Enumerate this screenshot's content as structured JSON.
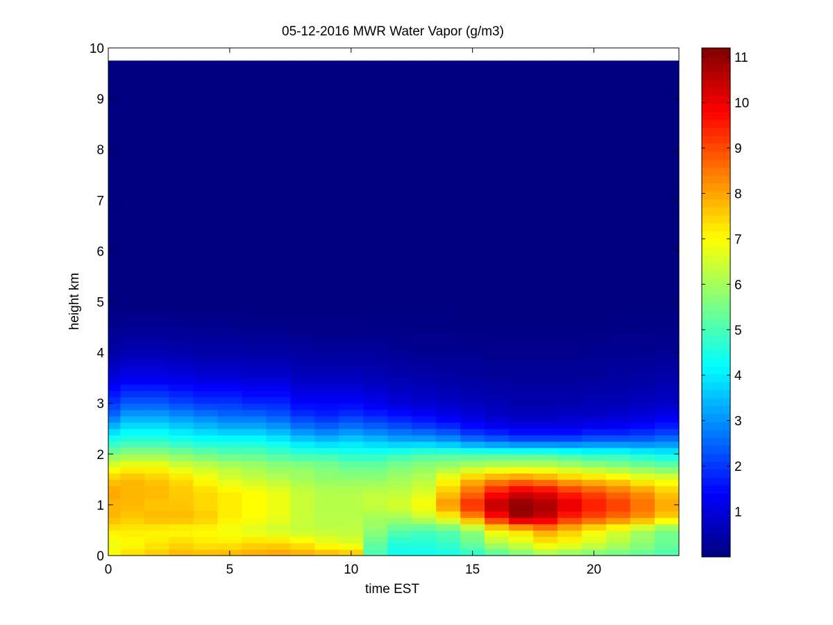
{
  "chart_data": {
    "type": "heatmap",
    "title": "05-12-2016 MWR Water Vapor (g/m3)",
    "xlabel": "time EST",
    "ylabel": "height km",
    "xlim": [
      0,
      23.5
    ],
    "ylim": [
      0,
      10
    ],
    "x_ticks": [
      "0",
      "5",
      "10",
      "15",
      "20"
    ],
    "y_ticks": [
      "0",
      "1",
      "2",
      "3",
      "4",
      "5",
      "6",
      "7",
      "8",
      "9",
      "10"
    ],
    "data_extent": {
      "x": [
        0,
        23.5
      ],
      "y": [
        0,
        9.75
      ]
    },
    "colorbar": {
      "colormap": "jet",
      "range": [
        0,
        11.2
      ],
      "ticks": [
        "1",
        "2",
        "3",
        "4",
        "5",
        "6",
        "7",
        "8",
        "9",
        "10",
        "11"
      ]
    },
    "grid": false,
    "x": [
      0.5,
      1.5,
      2.5,
      3.5,
      4.5,
      5.5,
      6.5,
      7.5,
      8.5,
      9.5,
      10.5,
      11.5,
      12.5,
      13.5,
      14.5,
      15.5,
      16.5,
      17.5,
      18.5,
      19.5,
      20.5,
      21.5,
      22.5,
      23.5
    ],
    "heights_km": [
      0.0,
      0.25,
      0.5,
      0.75,
      1.0,
      1.25,
      1.5,
      1.75,
      2.0,
      2.25,
      2.5,
      2.75,
      3.0,
      3.5,
      4.0,
      4.5,
      5.0
    ],
    "z_surface_to_top": [
      [
        7.0,
        7.4,
        7.6,
        7.8,
        7.8,
        7.9,
        8.0,
        8.1,
        8.0,
        7.9,
        7.8,
        5.0,
        4.3,
        4.3,
        4.4,
        4.6,
        5.0,
        5.4,
        5.8,
        5.6,
        5.4,
        5.3,
        5.2,
        5.0
      ],
      [
        6.8,
        7.0,
        7.2,
        7.4,
        7.2,
        7.2,
        7.4,
        7.4,
        7.2,
        6.8,
        6.6,
        5.3,
        4.6,
        4.6,
        4.8,
        5.4,
        6.2,
        6.6,
        7.2,
        7.0,
        6.6,
        6.2,
        5.8,
        5.4
      ],
      [
        7.2,
        7.2,
        7.1,
        7.0,
        7.0,
        6.8,
        6.6,
        6.4,
        6.3,
        6.3,
        6.3,
        5.8,
        5.2,
        5.0,
        5.2,
        5.8,
        7.0,
        7.4,
        8.0,
        7.6,
        7.0,
        6.6,
        6.0,
        5.5
      ],
      [
        7.8,
        7.6,
        7.8,
        7.8,
        7.6,
        7.2,
        7.0,
        6.8,
        6.4,
        6.2,
        6.2,
        6.0,
        6.0,
        6.4,
        7.0,
        8.2,
        9.6,
        10.8,
        10.4,
        9.4,
        9.0,
        8.6,
        8.2,
        7.5
      ],
      [
        7.8,
        7.8,
        7.6,
        7.6,
        7.4,
        7.2,
        7.0,
        6.8,
        6.4,
        6.2,
        6.2,
        6.4,
        6.6,
        7.0,
        8.2,
        9.4,
        10.6,
        11.1,
        10.8,
        10.2,
        9.6,
        9.2,
        8.6,
        8.0
      ],
      [
        8.0,
        7.8,
        7.8,
        7.6,
        7.4,
        7.2,
        7.0,
        6.8,
        6.4,
        6.2,
        6.2,
        6.3,
        6.3,
        6.6,
        7.6,
        8.6,
        9.6,
        10.2,
        10.0,
        9.4,
        9.0,
        8.6,
        8.2,
        7.6
      ],
      [
        7.6,
        7.8,
        7.6,
        7.4,
        7.0,
        6.6,
        6.4,
        6.2,
        6.0,
        5.8,
        5.8,
        5.8,
        6.0,
        6.2,
        7.0,
        7.8,
        8.2,
        8.4,
        8.2,
        7.8,
        7.6,
        7.4,
        7.0,
        6.8
      ],
      [
        6.8,
        7.0,
        7.0,
        6.6,
        6.4,
        6.2,
        6.0,
        5.8,
        5.8,
        5.6,
        5.4,
        5.4,
        5.6,
        5.8,
        6.0,
        6.2,
        6.4,
        6.4,
        6.4,
        6.2,
        6.0,
        5.8,
        5.6,
        5.4
      ],
      [
        5.6,
        5.8,
        5.8,
        5.6,
        5.4,
        5.2,
        5.2,
        5.0,
        4.8,
        4.8,
        4.6,
        4.6,
        4.8,
        5.0,
        5.0,
        5.0,
        5.0,
        5.0,
        5.0,
        4.8,
        4.6,
        4.6,
        4.4,
        4.2
      ],
      [
        4.6,
        4.8,
        4.8,
        4.6,
        4.4,
        4.4,
        4.4,
        4.2,
        3.8,
        3.6,
        3.8,
        3.6,
        3.4,
        3.4,
        3.2,
        2.8,
        2.6,
        2.4,
        2.4,
        2.4,
        2.6,
        2.6,
        2.6,
        2.8
      ],
      [
        3.6,
        4.0,
        4.0,
        3.8,
        3.6,
        3.4,
        3.4,
        3.2,
        2.8,
        2.6,
        2.8,
        2.6,
        2.4,
        2.2,
        2.0,
        1.6,
        1.4,
        1.2,
        1.2,
        1.2,
        1.4,
        1.4,
        1.6,
        1.8
      ],
      [
        2.6,
        3.2,
        3.2,
        3.0,
        2.8,
        2.6,
        2.6,
        2.4,
        2.0,
        1.8,
        2.0,
        1.8,
        1.6,
        1.4,
        1.2,
        1.0,
        0.8,
        0.7,
        0.7,
        0.8,
        0.8,
        0.9,
        1.0,
        1.2
      ],
      [
        2.0,
        2.4,
        2.4,
        2.2,
        2.0,
        2.0,
        1.8,
        1.8,
        1.4,
        1.4,
        1.4,
        1.2,
        1.0,
        0.9,
        0.8,
        0.7,
        0.6,
        0.5,
        0.5,
        0.5,
        0.6,
        0.6,
        0.7,
        0.8
      ],
      [
        1.0,
        1.2,
        1.2,
        1.1,
        1.0,
        1.0,
        0.9,
        0.9,
        0.7,
        0.7,
        0.7,
        0.6,
        0.5,
        0.45,
        0.4,
        0.35,
        0.3,
        0.3,
        0.3,
        0.3,
        0.3,
        0.35,
        0.4,
        0.45
      ],
      [
        0.45,
        0.55,
        0.55,
        0.5,
        0.45,
        0.45,
        0.4,
        0.4,
        0.35,
        0.3,
        0.3,
        0.3,
        0.25,
        0.2,
        0.2,
        0.18,
        0.15,
        0.15,
        0.15,
        0.15,
        0.18,
        0.2,
        0.2,
        0.22
      ],
      [
        0.15,
        0.2,
        0.2,
        0.18,
        0.15,
        0.15,
        0.12,
        0.12,
        0.1,
        0.1,
        0.1,
        0.08,
        0.08,
        0.06,
        0.06,
        0.05,
        0.05,
        0.05,
        0.05,
        0.05,
        0.05,
        0.06,
        0.06,
        0.07
      ],
      [
        0.02,
        0.02,
        0.02,
        0.02,
        0.02,
        0.02,
        0.02,
        0.02,
        0.02,
        0.02,
        0.02,
        0.02,
        0.02,
        0.02,
        0.02,
        0.02,
        0.02,
        0.02,
        0.02,
        0.02,
        0.02,
        0.02,
        0.02,
        0.02
      ]
    ]
  }
}
